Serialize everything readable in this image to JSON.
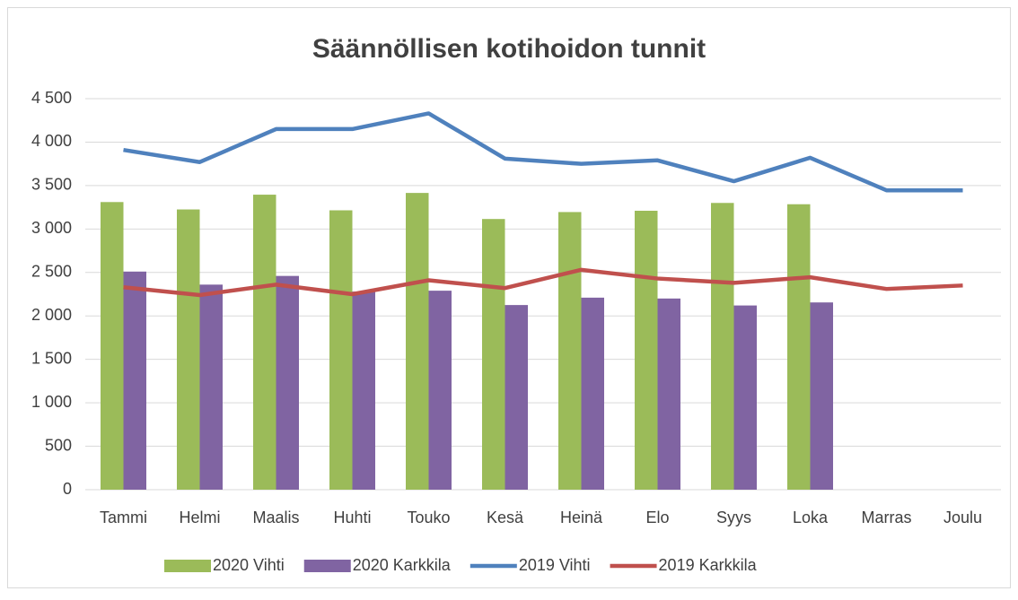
{
  "chart_data": {
    "type": "bar+line",
    "title": "Säännöllisen kotihoidon tunnit",
    "categories": [
      "Tammi",
      "Helmi",
      "Maalis",
      "Huhti",
      "Touko",
      "Kesä",
      "Heinä",
      "Elo",
      "Syys",
      "Loka",
      "Marras",
      "Joulu"
    ],
    "series": [
      {
        "name": "2020 Vihti",
        "type": "bar",
        "color": "#9bbb59",
        "values": [
          3310,
          3225,
          3395,
          3215,
          3415,
          3115,
          3195,
          3210,
          3300,
          3285,
          null,
          null
        ]
      },
      {
        "name": "2020 Karkkila",
        "type": "bar",
        "color": "#8064a2",
        "values": [
          2510,
          2360,
          2460,
          2280,
          2290,
          2125,
          2210,
          2200,
          2120,
          2155,
          null,
          null
        ]
      },
      {
        "name": "2019 Vihti",
        "type": "line",
        "color": "#4f81bd",
        "values": [
          3910,
          3770,
          4150,
          4150,
          4330,
          3810,
          3750,
          3790,
          3550,
          3820,
          3445,
          3445
        ]
      },
      {
        "name": "2019 Karkkila",
        "type": "line",
        "color": "#c0504d",
        "values": [
          2330,
          2240,
          2360,
          2250,
          2410,
          2320,
          2530,
          2430,
          2380,
          2445,
          2310,
          2350
        ]
      }
    ],
    "ylim": [
      0,
      4500
    ],
    "yticks": [
      0,
      500,
      {
        "value": 1000,
        "label": "1 000"
      },
      {
        "value": 1500,
        "label": "1 500"
      },
      {
        "value": 2000,
        "label": "2 000"
      },
      {
        "value": 2500,
        "label": "2 500"
      },
      {
        "value": 3000,
        "label": "3 000"
      },
      {
        "value": 3500,
        "label": "3 500"
      },
      {
        "value": 4000,
        "label": "4 000"
      },
      {
        "value": 4500,
        "label": "4 500"
      }
    ],
    "grid": true,
    "legend": "bottom"
  }
}
